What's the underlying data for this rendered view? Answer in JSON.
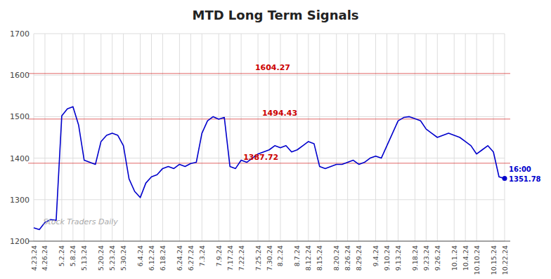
{
  "chart_data": {
    "type": "line",
    "title": "MTD Long Term Signals",
    "categories": [
      "4.23.24",
      null,
      "4.26.24",
      null,
      null,
      "5.2.24",
      null,
      "5.8.24",
      null,
      "5.13.24",
      null,
      null,
      "5.20.24",
      null,
      "5.23.24",
      null,
      "5.30.24",
      null,
      null,
      "6.4.24",
      null,
      "6.12.24",
      null,
      "6.18.24",
      null,
      null,
      "6.24.24",
      null,
      "6.27.24",
      null,
      "7.3.24",
      null,
      null,
      "7.9.24",
      null,
      "7.17.24",
      null,
      "7.22.24",
      null,
      null,
      "7.25.24",
      null,
      "7.30.24",
      null,
      "8.2.24",
      null,
      null,
      "8.7.24",
      null,
      "8.12.24",
      null,
      "8.15.24",
      null,
      null,
      "8.20.24",
      null,
      "8.26.24",
      null,
      "8.29.24",
      null,
      null,
      "9.4.24",
      null,
      "9.10.24",
      null,
      "9.13.24",
      null,
      null,
      "9.18.24",
      null,
      "9.23.24",
      null,
      "9.26.24",
      null,
      null,
      "10.1.24",
      null,
      "10.4.24",
      null,
      "10.10.24",
      null,
      null,
      "10.15.24",
      null,
      "10.22.24"
    ],
    "values": [
      1232,
      1228,
      1245,
      1252,
      1250,
      1502,
      1519,
      1524,
      1480,
      1395,
      1390,
      1385,
      1440,
      1455,
      1460,
      1455,
      1430,
      1350,
      1320,
      1305,
      1340,
      1355,
      1360,
      1375,
      1380,
      1375,
      1385,
      1380,
      1387,
      1390,
      1460,
      1490,
      1500,
      1494,
      1498,
      1380,
      1375,
      1395,
      1390,
      1400,
      1410,
      1415,
      1420,
      1430,
      1425,
      1430,
      1415,
      1420,
      1430,
      1440,
      1435,
      1380,
      1375,
      1380,
      1385,
      1385,
      1390,
      1395,
      1385,
      1390,
      1400,
      1405,
      1400,
      1430,
      1460,
      1490,
      1498,
      1500,
      1495,
      1490,
      1470,
      1460,
      1450,
      1455,
      1460,
      1455,
      1450,
      1440,
      1430,
      1410,
      1420,
      1430,
      1415,
      1355,
      1351
    ],
    "color": "#0000cc",
    "ylim": [
      1200,
      1700
    ],
    "yticks": [
      1200,
      1300,
      1400,
      1500,
      1600,
      1700
    ],
    "grid": true,
    "hlines": [
      {
        "value": 1604.27,
        "label": "1604.27",
        "color": "#cc0000"
      },
      {
        "value": 1494.43,
        "label": "1494.43",
        "color": "#cc0000"
      },
      {
        "value": 1387.72,
        "label": "1387.72",
        "color": "#cc0000"
      }
    ],
    "annotations": [
      {
        "text": "16:00",
        "color": "#0000cc"
      },
      {
        "text": "1351.78",
        "color": "#0000cc"
      },
      {
        "text": "Stock Traders Daily",
        "color": "#aaaaaa"
      }
    ]
  }
}
